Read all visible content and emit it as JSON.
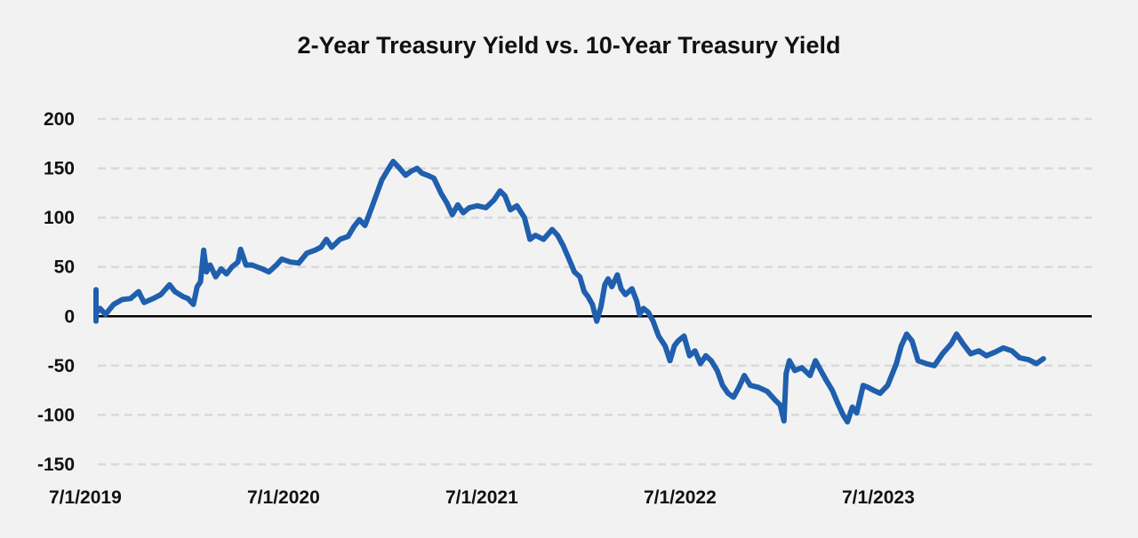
{
  "chart_data": {
    "type": "line",
    "title": "2-Year Treasury Yield vs. 10-Year Treasury Yield",
    "xlabel": "",
    "ylabel": "",
    "ylim": [
      -150,
      200
    ],
    "yticks": [
      200,
      150,
      100,
      50,
      0,
      -50,
      -100,
      -150
    ],
    "xticks": [
      "7/1/2019",
      "7/1/2020",
      "7/1/2021",
      "7/1/2022",
      "7/1/2023"
    ],
    "xlim": [
      "2019-07-01",
      "2024-06-30"
    ],
    "grid": true,
    "legend": "none",
    "colors": {
      "series": "#1f5fad",
      "zero_line": "#000000",
      "grid": "#d9d9d9"
    },
    "series": [
      {
        "points": [
          [
            "2019-07-01",
            25
          ],
          [
            "2019-07-10",
            18
          ],
          [
            "2019-07-20",
            27
          ],
          [
            "2019-08-01",
            24
          ],
          [
            "2019-08-15",
            12
          ],
          [
            "2019-08-28",
            1
          ],
          [
            "2019-09-05",
            -5
          ],
          [
            "2019-09-15",
            3
          ],
          [
            "2019-09-25",
            8
          ],
          [
            "2019-10-05",
            2
          ],
          [
            "2019-10-20",
            12
          ],
          [
            "2019-11-05",
            17
          ],
          [
            "2019-11-20",
            18
          ],
          [
            "2019-12-05",
            25
          ],
          [
            "2019-12-15",
            14
          ],
          [
            "2020-01-01",
            18
          ],
          [
            "2020-01-15",
            22
          ],
          [
            "2020-01-31",
            32
          ],
          [
            "2020-02-10",
            25
          ],
          [
            "2020-02-25",
            20
          ],
          [
            "2020-03-05",
            18
          ],
          [
            "2020-03-15",
            12
          ],
          [
            "2020-03-22",
            30
          ],
          [
            "2020-03-28",
            35
          ],
          [
            "2020-04-03",
            67
          ],
          [
            "2020-04-08",
            45
          ],
          [
            "2020-04-15",
            52
          ],
          [
            "2020-04-25",
            40
          ],
          [
            "2020-05-05",
            48
          ],
          [
            "2020-05-15",
            43
          ],
          [
            "2020-05-25",
            50
          ],
          [
            "2020-06-05",
            55
          ],
          [
            "2020-06-10",
            68
          ],
          [
            "2020-06-20",
            52
          ],
          [
            "2020-07-01",
            52
          ],
          [
            "2020-07-20",
            48
          ],
          [
            "2020-08-01",
            45
          ],
          [
            "2020-08-15",
            52
          ],
          [
            "2020-08-25",
            58
          ],
          [
            "2020-09-10",
            55
          ],
          [
            "2020-09-25",
            54
          ],
          [
            "2020-10-10",
            64
          ],
          [
            "2020-10-25",
            67
          ],
          [
            "2020-11-05",
            70
          ],
          [
            "2020-11-15",
            78
          ],
          [
            "2020-11-25",
            70
          ],
          [
            "2020-12-10",
            78
          ],
          [
            "2020-12-25",
            81
          ],
          [
            "2021-01-05",
            91
          ],
          [
            "2021-01-15",
            98
          ],
          [
            "2021-01-25",
            92
          ],
          [
            "2021-02-05",
            108
          ],
          [
            "2021-02-15",
            123
          ],
          [
            "2021-02-25",
            138
          ],
          [
            "2021-03-10",
            150
          ],
          [
            "2021-03-18",
            157
          ],
          [
            "2021-03-30",
            150
          ],
          [
            "2021-04-10",
            143
          ],
          [
            "2021-04-20",
            147
          ],
          [
            "2021-05-01",
            150
          ],
          [
            "2021-05-10",
            145
          ],
          [
            "2021-05-20",
            143
          ],
          [
            "2021-06-01",
            140
          ],
          [
            "2021-06-15",
            124
          ],
          [
            "2021-06-25",
            115
          ],
          [
            "2021-07-05",
            103
          ],
          [
            "2021-07-15",
            113
          ],
          [
            "2021-07-25",
            105
          ],
          [
            "2021-08-05",
            110
          ],
          [
            "2021-08-20",
            112
          ],
          [
            "2021-09-05",
            110
          ],
          [
            "2021-09-20",
            118
          ],
          [
            "2021-10-01",
            127
          ],
          [
            "2021-10-10",
            122
          ],
          [
            "2021-10-20",
            108
          ],
          [
            "2021-11-01",
            112
          ],
          [
            "2021-11-15",
            100
          ],
          [
            "2021-11-25",
            78
          ],
          [
            "2021-12-05",
            82
          ],
          [
            "2021-12-20",
            78
          ],
          [
            "2022-01-05",
            88
          ],
          [
            "2022-01-15",
            82
          ],
          [
            "2022-01-25",
            72
          ],
          [
            "2022-02-05",
            58
          ],
          [
            "2022-02-15",
            45
          ],
          [
            "2022-02-25",
            40
          ],
          [
            "2022-03-05",
            25
          ],
          [
            "2022-03-12",
            20
          ],
          [
            "2022-03-20",
            12
          ],
          [
            "2022-03-28",
            -5
          ],
          [
            "2022-04-05",
            10
          ],
          [
            "2022-04-12",
            32
          ],
          [
            "2022-04-18",
            38
          ],
          [
            "2022-04-25",
            30
          ],
          [
            "2022-05-05",
            42
          ],
          [
            "2022-05-12",
            28
          ],
          [
            "2022-05-20",
            22
          ],
          [
            "2022-06-01",
            28
          ],
          [
            "2022-06-10",
            15
          ],
          [
            "2022-06-15",
            2
          ],
          [
            "2022-06-22",
            8
          ],
          [
            "2022-07-01",
            4
          ],
          [
            "2022-07-10",
            -5
          ],
          [
            "2022-07-20",
            -20
          ],
          [
            "2022-08-01",
            -30
          ],
          [
            "2022-08-10",
            -45
          ],
          [
            "2022-08-18",
            -30
          ],
          [
            "2022-08-25",
            -25
          ],
          [
            "2022-09-05",
            -20
          ],
          [
            "2022-09-15",
            -40
          ],
          [
            "2022-09-25",
            -35
          ],
          [
            "2022-10-05",
            -48
          ],
          [
            "2022-10-15",
            -40
          ],
          [
            "2022-10-25",
            -45
          ],
          [
            "2022-11-05",
            -55
          ],
          [
            "2022-11-15",
            -70
          ],
          [
            "2022-11-25",
            -78
          ],
          [
            "2022-12-05",
            -82
          ],
          [
            "2022-12-15",
            -72
          ],
          [
            "2022-12-25",
            -60
          ],
          [
            "2023-01-05",
            -70
          ],
          [
            "2023-01-20",
            -72
          ],
          [
            "2023-02-05",
            -76
          ],
          [
            "2023-02-20",
            -85
          ],
          [
            "2023-03-01",
            -90
          ],
          [
            "2023-03-08",
            -106
          ],
          [
            "2023-03-12",
            -58
          ],
          [
            "2023-03-18",
            -45
          ],
          [
            "2023-03-28",
            -55
          ],
          [
            "2023-04-10",
            -52
          ],
          [
            "2023-04-25",
            -60
          ],
          [
            "2023-05-05",
            -45
          ],
          [
            "2023-05-15",
            -55
          ],
          [
            "2023-05-25",
            -65
          ],
          [
            "2023-06-05",
            -75
          ],
          [
            "2023-06-15",
            -88
          ],
          [
            "2023-06-25",
            -100
          ],
          [
            "2023-07-03",
            -107
          ],
          [
            "2023-07-12",
            -92
          ],
          [
            "2023-07-20",
            -98
          ],
          [
            "2023-08-01",
            -70
          ],
          [
            "2023-08-10",
            -72
          ],
          [
            "2023-08-20",
            -75
          ],
          [
            "2023-09-01",
            -78
          ],
          [
            "2023-09-15",
            -70
          ],
          [
            "2023-10-01",
            -48
          ],
          [
            "2023-10-10",
            -30
          ],
          [
            "2023-10-20",
            -18
          ],
          [
            "2023-10-30",
            -25
          ],
          [
            "2023-11-10",
            -45
          ],
          [
            "2023-11-25",
            -48
          ],
          [
            "2023-12-10",
            -50
          ],
          [
            "2023-12-25",
            -38
          ],
          [
            "2024-01-10",
            -28
          ],
          [
            "2024-01-20",
            -18
          ],
          [
            "2024-02-01",
            -28
          ],
          [
            "2024-02-15",
            -38
          ],
          [
            "2024-03-01",
            -35
          ],
          [
            "2024-03-15",
            -40
          ],
          [
            "2024-04-01",
            -36
          ],
          [
            "2024-04-15",
            -32
          ],
          [
            "2024-05-01",
            -35
          ],
          [
            "2024-05-15",
            -42
          ],
          [
            "2024-06-01",
            -44
          ],
          [
            "2024-06-15",
            -48
          ],
          [
            "2024-06-28",
            -43
          ]
        ]
      }
    ]
  }
}
